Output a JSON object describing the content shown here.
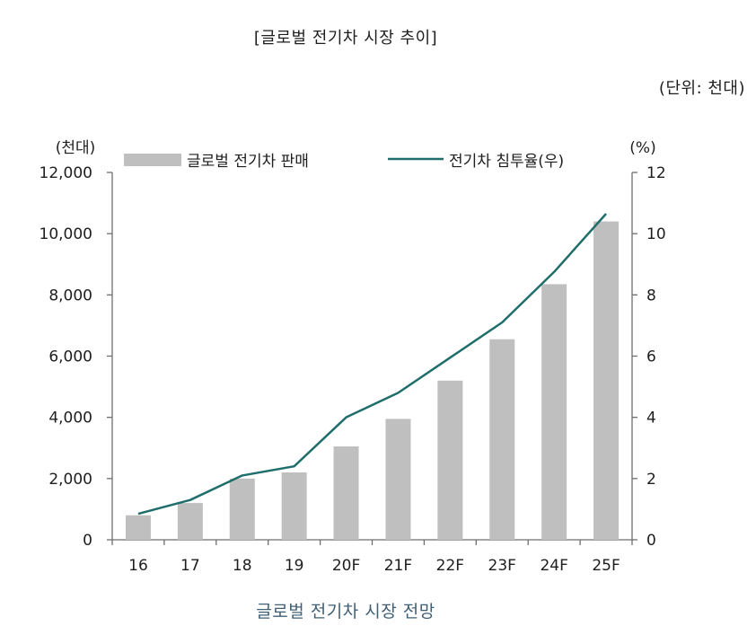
{
  "header": {
    "title": "[글로벌 전기차 시장 추이]",
    "unit_note": "(단위: 천대)"
  },
  "caption": "글로벌 전기차 시장 전망",
  "chart_data": {
    "type": "bar",
    "categories": [
      "16",
      "17",
      "18",
      "19",
      "20F",
      "21F",
      "22F",
      "23F",
      "24F",
      "25F"
    ],
    "series": [
      {
        "name": "글로벌 전기차 판매",
        "type": "bar",
        "axis": "left",
        "color": "#bfbfbf",
        "values": [
          800,
          1200,
          2000,
          2200,
          3050,
          3950,
          5200,
          6550,
          8350,
          10400
        ]
      },
      {
        "name": "전기차 침투율(우)",
        "type": "line",
        "axis": "right",
        "color": "#1f6e6b",
        "values": [
          0.85,
          1.3,
          2.1,
          2.4,
          4.0,
          4.8,
          5.95,
          7.1,
          8.75,
          10.65
        ]
      }
    ],
    "left_axis": {
      "unit_label": "(천대)",
      "range": [
        0,
        12000
      ],
      "ticks": [
        0,
        2000,
        4000,
        6000,
        8000,
        10000,
        12000
      ],
      "tick_labels": [
        "0",
        "2,000",
        "4,000",
        "6,000",
        "8,000",
        "10,000",
        "12,000"
      ]
    },
    "right_axis": {
      "unit_label": "(%)",
      "range": [
        0,
        12
      ],
      "ticks": [
        0,
        2,
        4,
        6,
        8,
        10,
        12
      ],
      "tick_labels": [
        "0",
        "2",
        "4",
        "6",
        "8",
        "10",
        "12"
      ]
    },
    "grid": false,
    "legend_position": "top"
  }
}
